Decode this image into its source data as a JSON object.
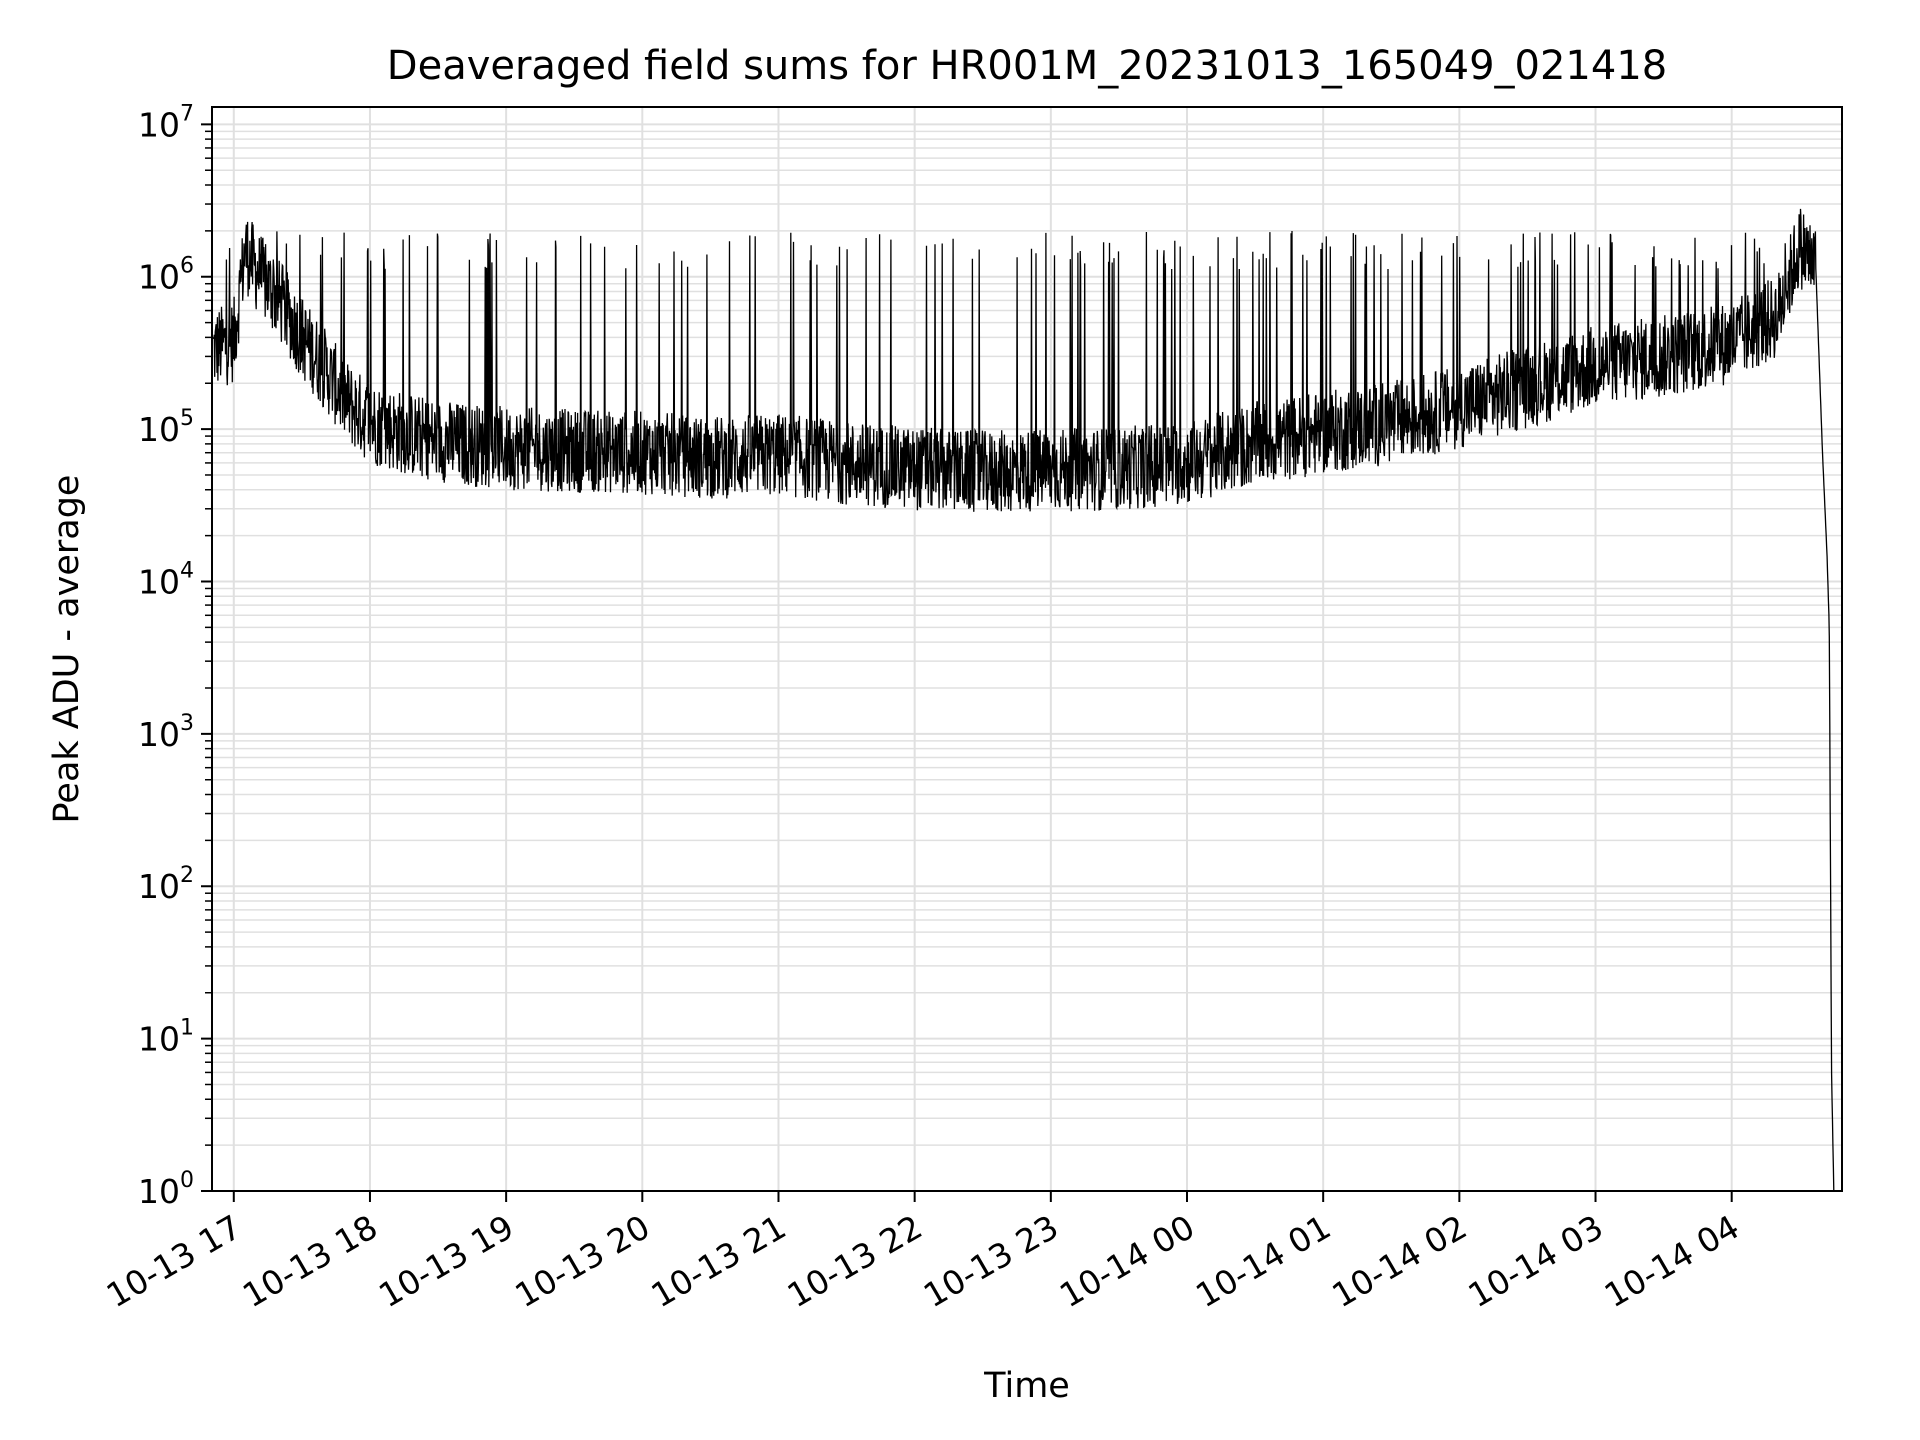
{
  "chart_data": {
    "type": "line",
    "title": "Deaveraged field sums for HR001M_20231013_165049_021418",
    "xlabel": "Time",
    "ylabel": "Peak ADU - average",
    "yscale": "log",
    "ylim": [
      1,
      13000000
    ],
    "xlim_hours": [
      16.84,
      28.81
    ],
    "grid": true,
    "x_tick_labels": [
      "10-13 17",
      "10-13 18",
      "10-13 19",
      "10-13 20",
      "10-13 21",
      "10-13 22",
      "10-13 23",
      "10-14 00",
      "10-14 01",
      "10-14 02",
      "10-14 03",
      "10-14 04"
    ],
    "y_ticks": [
      {
        "base": "10",
        "exp": "0",
        "value": 1
      },
      {
        "base": "10",
        "exp": "1",
        "value": 10
      },
      {
        "base": "10",
        "exp": "2",
        "value": 100
      },
      {
        "base": "10",
        "exp": "3",
        "value": 1000
      },
      {
        "base": "10",
        "exp": "4",
        "value": 10000
      },
      {
        "base": "10",
        "exp": "5",
        "value": 100000
      },
      {
        "base": "10",
        "exp": "6",
        "value": 1000000
      },
      {
        "base": "10",
        "exp": "7",
        "value": 10000000
      }
    ],
    "line_color": "#000000",
    "grid_color": "#e0e0e0",
    "series": [
      {
        "x": [
          "10-13 16:51",
          "10-13 17:00",
          "10-13 17:05",
          "10-13 17:10",
          "10-13 17:20",
          "10-13 17:30",
          "10-13 17:40",
          "10-13 17:50",
          "10-13 18:00",
          "10-13 18:20",
          "10-13 18:40",
          "10-13 19:00",
          "10-13 19:30",
          "10-13 20:00",
          "10-13 20:30",
          "10-13 21:00",
          "10-13 21:30",
          "10-13 22:00",
          "10-13 22:30",
          "10-13 23:00",
          "10-13 23:30",
          "10-14 00:00",
          "10-14 00:30",
          "10-14 01:00",
          "10-14 01:30",
          "10-14 02:00",
          "10-14 02:30",
          "10-14 03:00",
          "10-14 03:30",
          "10-14 04:00",
          "10-14 04:20",
          "10-14 04:30",
          "10-14 04:37",
          "10-14 04:40",
          "10-14 04:42",
          "10-14 04:43",
          "10-14 04:44",
          "10-14 04:45",
          "10-14 04:46"
        ],
        "y": [
          330000,
          380000,
          1500000,
          1100000,
          700000,
          400000,
          250000,
          150000,
          110000,
          90000,
          80000,
          75000,
          72000,
          70000,
          65000,
          68000,
          60000,
          55000,
          52000,
          54000,
          55000,
          60000,
          80000,
          95000,
          110000,
          140000,
          190000,
          260000,
          300000,
          370000,
          550000,
          1600000,
          1200000,
          70000,
          15000,
          5000,
          6,
          1,
          1
        ]
      }
    ]
  }
}
